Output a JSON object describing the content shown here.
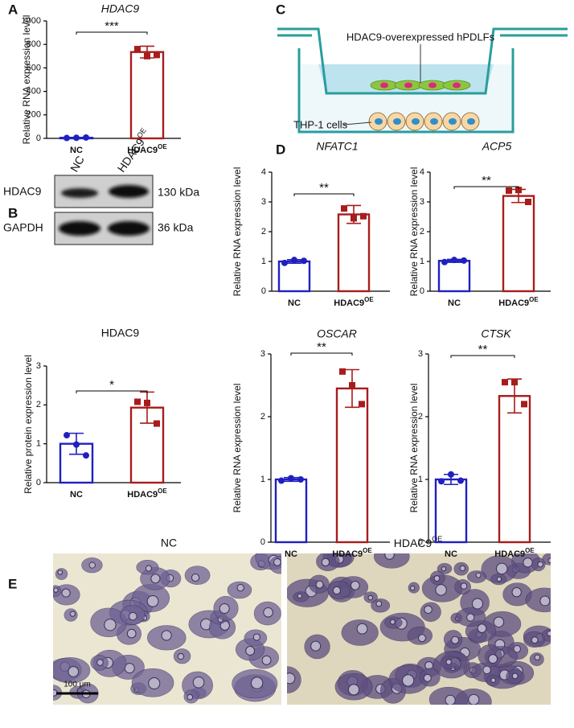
{
  "panel_labels": [
    "A",
    "B",
    "C",
    "D",
    "E"
  ],
  "blot": {
    "lanes": [
      "NC",
      "HDAC9"
    ],
    "lane_superscripts": {
      "1": "OE"
    },
    "proteins": [
      "HDAC9",
      "GAPDH"
    ],
    "sizes": [
      "130 kDa",
      "36 kDa"
    ]
  },
  "diagram": {
    "upper": "HDAC9-overexpressed hPDLFs",
    "lower": "THP-1 cells"
  },
  "micrographs": {
    "labels": [
      "NC",
      "HDAC9"
    ],
    "superscripts": {
      "1": "OE"
    },
    "scale": "100 μm"
  },
  "chart_data": [
    {
      "type": "bar",
      "title": "HDAC9",
      "title_italic": true,
      "ylabel": "Relative RNA expression level",
      "categories": [
        "NC",
        "HDAC9"
      ],
      "superscripts": {
        "1": "OE"
      },
      "colors": [
        "#2020c0",
        "#a81c1c"
      ],
      "values": [
        5,
        735
      ],
      "errors": [
        3,
        50
      ],
      "points": [
        [
          3,
          5,
          7
        ],
        [
          760,
          700,
          710
        ]
      ],
      "ylim": [
        0,
        1000
      ],
      "yticks": [
        0,
        200,
        400,
        600,
        800,
        1000
      ],
      "significance": "***"
    },
    {
      "type": "bar",
      "title": "HDAC9",
      "title_italic": false,
      "ylabel": "Relative protein expression level",
      "categories": [
        "NC",
        "HDAC9"
      ],
      "superscripts": {
        "1": "OE"
      },
      "colors": [
        "#2020c0",
        "#a81c1c"
      ],
      "values": [
        1.0,
        1.93
      ],
      "errors": [
        0.27,
        0.4
      ],
      "points": [
        [
          1.22,
          0.98,
          0.7
        ],
        [
          2.08,
          2.05,
          1.52
        ]
      ],
      "ylim": [
        0,
        3
      ],
      "yticks": [
        0,
        1,
        2,
        3
      ],
      "significance": "*"
    },
    {
      "type": "bar",
      "title": "NFATC1",
      "title_italic": true,
      "ylabel": "Relative RNA expression level",
      "categories": [
        "NC",
        "HDAC9"
      ],
      "superscripts": {
        "1": "OE"
      },
      "colors": [
        "#2020c0",
        "#a81c1c"
      ],
      "values": [
        1.0,
        2.58
      ],
      "errors": [
        0.06,
        0.3
      ],
      "points": [
        [
          0.95,
          1.05,
          1.02
        ],
        [
          2.78,
          2.45,
          2.52
        ]
      ],
      "ylim": [
        0,
        4
      ],
      "yticks": [
        0,
        1,
        2,
        3,
        4
      ],
      "significance": "**"
    },
    {
      "type": "bar",
      "title": "ACP5",
      "title_italic": true,
      "ylabel": "Relative RNA expression level",
      "categories": [
        "NC",
        "HDAC9"
      ],
      "superscripts": {
        "1": "OE"
      },
      "colors": [
        "#2020c0",
        "#a81c1c"
      ],
      "values": [
        1.02,
        3.2
      ],
      "errors": [
        0.05,
        0.22
      ],
      "points": [
        [
          0.98,
          1.05,
          1.03
        ],
        [
          3.38,
          3.4,
          3.0
        ]
      ],
      "ylim": [
        0,
        4
      ],
      "yticks": [
        0,
        1,
        2,
        3,
        4
      ],
      "significance": "**"
    },
    {
      "type": "bar",
      "title": "OSCAR",
      "title_italic": true,
      "ylabel": "Relative RNA expression level",
      "categories": [
        "NC",
        "HDAC9"
      ],
      "superscripts": {
        "1": "OE"
      },
      "colors": [
        "#2020c0",
        "#a81c1c"
      ],
      "values": [
        1.0,
        2.45
      ],
      "errors": [
        0.03,
        0.3
      ],
      "points": [
        [
          0.98,
          1.02,
          1.0
        ],
        [
          2.72,
          2.5,
          2.2
        ]
      ],
      "ylim": [
        0,
        3
      ],
      "yticks": [
        0,
        1,
        2,
        3
      ],
      "significance": "**"
    },
    {
      "type": "bar",
      "title": "CTSK",
      "title_italic": true,
      "ylabel": "Relative RNA expression level",
      "categories": [
        "NC",
        "HDAC9"
      ],
      "superscripts": {
        "1": "OE"
      },
      "colors": [
        "#2020c0",
        "#a81c1c"
      ],
      "values": [
        1.0,
        2.33
      ],
      "errors": [
        0.08,
        0.27
      ],
      "points": [
        [
          0.97,
          1.08,
          0.98
        ],
        [
          2.55,
          2.55,
          2.2
        ]
      ],
      "ylim": [
        0,
        3
      ],
      "yticks": [
        0,
        1,
        2,
        3
      ],
      "significance": "**"
    }
  ]
}
